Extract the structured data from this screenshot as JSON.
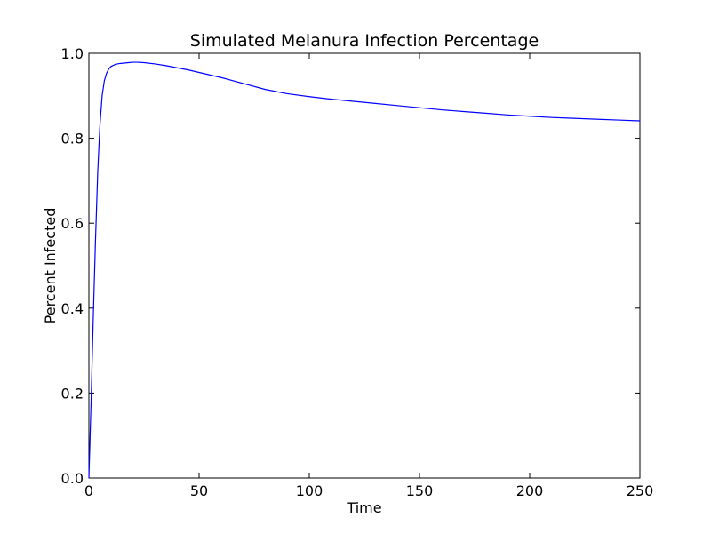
{
  "chart_data": {
    "type": "line",
    "title": "Simulated Melanura Infection Percentage",
    "xlabel": "Time",
    "ylabel": "Percent Infected",
    "xlim": [
      0,
      250
    ],
    "ylim": [
      0.0,
      1.0
    ],
    "xticks": [
      0,
      50,
      100,
      150,
      200,
      250
    ],
    "xtick_labels": [
      "0",
      "50",
      "100",
      "150",
      "200",
      "250"
    ],
    "yticks": [
      0.0,
      0.2,
      0.4,
      0.6,
      0.8,
      1.0
    ],
    "ytick_labels": [
      "0.0",
      "0.2",
      "0.4",
      "0.6",
      "0.8",
      "1.0"
    ],
    "grid": false,
    "legend": "none",
    "series": [
      {
        "color": "#0000ff",
        "x": [
          0,
          1,
          2,
          3,
          4,
          5,
          6,
          7,
          8,
          9,
          10,
          12,
          14,
          16,
          18,
          20,
          22,
          25,
          30,
          35,
          40,
          45,
          50,
          60,
          70,
          80,
          90,
          100,
          110,
          120,
          130,
          140,
          150,
          160,
          170,
          180,
          190,
          200,
          210,
          220,
          230,
          240,
          250
        ],
        "y": [
          0.0,
          0.18,
          0.38,
          0.56,
          0.72,
          0.83,
          0.9,
          0.935,
          0.953,
          0.963,
          0.969,
          0.974,
          0.976,
          0.977,
          0.978,
          0.979,
          0.979,
          0.978,
          0.975,
          0.971,
          0.966,
          0.961,
          0.955,
          0.943,
          0.929,
          0.915,
          0.905,
          0.898,
          0.892,
          0.887,
          0.882,
          0.877,
          0.872,
          0.867,
          0.863,
          0.859,
          0.855,
          0.852,
          0.849,
          0.847,
          0.845,
          0.843,
          0.841
        ]
      }
    ]
  }
}
